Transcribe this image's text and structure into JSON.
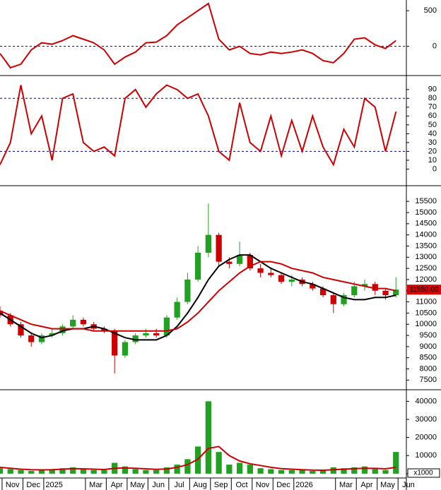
{
  "chart_data": [
    {
      "type": "line",
      "x": [
        0.9,
        1.4,
        1.9,
        2.4,
        2.9,
        3.4,
        3.9,
        4.4,
        4.9,
        5.4,
        5.9,
        6.4,
        6.9,
        7.4,
        7.9,
        8.4,
        8.9,
        9.4,
        9.9,
        10.4,
        10.9,
        11.4,
        11.9,
        12.4,
        12.9,
        13.4,
        13.9,
        14.4,
        14.9,
        15.4,
        15.9,
        16.4,
        16.9,
        17.4,
        17.9,
        18.4,
        18.9,
        19.4,
        19.9
      ],
      "xlim": [
        0.9,
        20.4
      ],
      "ylim": [
        -400,
        650
      ],
      "yticks": [
        0,
        500
      ],
      "hlines": [
        0
      ],
      "series": [
        {
          "color": "#cc0000",
          "values": [
            -100,
            -300,
            -250,
            -50,
            50,
            30,
            80,
            150,
            100,
            50,
            -50,
            -250,
            -150,
            -80,
            50,
            60,
            150,
            300,
            400,
            500,
            600,
            100,
            -50,
            0,
            -100,
            -120,
            -80,
            -100,
            -80,
            -50,
            -100,
            -200,
            -230,
            -100,
            100,
            120,
            20,
            -30,
            80
          ]
        }
      ]
    },
    {
      "type": "line",
      "x": [
        0.9,
        1.4,
        1.9,
        2.4,
        2.9,
        3.4,
        3.9,
        4.4,
        4.9,
        5.4,
        5.9,
        6.4,
        6.9,
        7.4,
        7.9,
        8.4,
        8.9,
        9.4,
        9.9,
        10.4,
        10.9,
        11.4,
        11.9,
        12.4,
        12.9,
        13.4,
        13.9,
        14.4,
        14.9,
        15.4,
        15.9,
        16.4,
        16.9,
        17.4,
        17.9,
        18.4,
        18.9,
        19.4,
        19.9
      ],
      "xlim": [
        0.9,
        20.4
      ],
      "ylim": [
        -18,
        105
      ],
      "yticks": [
        0,
        10,
        20,
        30,
        40,
        50,
        60,
        70,
        80,
        90
      ],
      "hlines": [
        20,
        80
      ],
      "series": [
        {
          "color": "#cc0000",
          "values": [
            5,
            30,
            95,
            40,
            60,
            10,
            80,
            85,
            30,
            20,
            25,
            15,
            80,
            90,
            70,
            85,
            95,
            90,
            80,
            85,
            60,
            20,
            10,
            75,
            30,
            20,
            60,
            15,
            55,
            20,
            60,
            25,
            5,
            45,
            25,
            80,
            70,
            20,
            65
          ]
        }
      ]
    },
    {
      "type": "candlestick",
      "x": [
        0.9,
        1.4,
        1.9,
        2.4,
        2.9,
        3.4,
        3.9,
        4.4,
        4.9,
        5.4,
        5.9,
        6.4,
        6.9,
        7.4,
        7.9,
        8.4,
        8.9,
        9.4,
        9.9,
        10.4,
        10.9,
        11.4,
        11.9,
        12.4,
        12.9,
        13.4,
        13.9,
        14.4,
        14.9,
        15.4,
        15.9,
        16.4,
        16.9,
        17.4,
        17.9,
        18.4,
        18.9,
        19.4,
        19.9
      ],
      "xlim": [
        0.9,
        20.4
      ],
      "ylim": [
        7100,
        16170
      ],
      "yticks": [
        7500,
        8000,
        8500,
        9000,
        9500,
        10000,
        10500,
        11000,
        11500,
        12000,
        12500,
        13000,
        13500,
        14000,
        14500,
        15000,
        15500
      ],
      "open": [
        10600,
        10400,
        10000,
        9500,
        9200,
        9500,
        9600,
        9900,
        10200,
        10000,
        9800,
        9700,
        8600,
        9200,
        9500,
        9600,
        9500,
        10300,
        11000,
        12000,
        13200,
        14000,
        12800,
        12700,
        13100,
        12500,
        12300,
        12200,
        11900,
        12000,
        11800,
        11600,
        11300,
        10900,
        11300,
        11700,
        11800,
        11500,
        11300
      ],
      "high": [
        10800,
        10500,
        10100,
        9600,
        9600,
        9800,
        10000,
        10400,
        10300,
        10100,
        9900,
        9800,
        9300,
        9600,
        9800,
        9800,
        10400,
        11200,
        12300,
        13500,
        15400,
        14100,
        13000,
        13700,
        13200,
        12700,
        12500,
        12300,
        12200,
        12100,
        11900,
        11700,
        11400,
        11400,
        11900,
        12000,
        11900,
        11600,
        12100
      ],
      "low": [
        10300,
        9900,
        9400,
        9000,
        9100,
        9400,
        9500,
        9800,
        9900,
        9700,
        9600,
        7800,
        8500,
        9100,
        9400,
        9400,
        9400,
        10200,
        10900,
        11900,
        13000,
        12600,
        12500,
        12600,
        12400,
        12100,
        12100,
        11800,
        11700,
        11700,
        11500,
        11200,
        10500,
        10800,
        11200,
        11500,
        11300,
        11100,
        11200
      ],
      "close": [
        10400,
        10000,
        9500,
        9200,
        9500,
        9600,
        9900,
        10200,
        10000,
        9800,
        9700,
        8600,
        9200,
        9500,
        9600,
        9500,
        10300,
        11000,
        12000,
        13200,
        14000,
        12800,
        12700,
        13100,
        12500,
        12300,
        12200,
        11900,
        12000,
        11800,
        11600,
        11300,
        10900,
        11300,
        11700,
        11800,
        11500,
        11300,
        11550
      ],
      "last_label": "11550.00",
      "up_color": "#22a022",
      "down_color": "#cc0000",
      "series": [
        {
          "color": "#000000",
          "values": [
            10500,
            10200,
            9900,
            9600,
            9400,
            9500,
            9700,
            9800,
            9800,
            9900,
            9800,
            9600,
            9400,
            9300,
            9300,
            9300,
            9500,
            9900,
            10500,
            11200,
            12000,
            12600,
            12900,
            13100,
            13100,
            12800,
            12500,
            12300,
            12100,
            11900,
            11800,
            11600,
            11400,
            11200,
            11100,
            11100,
            11200,
            11200,
            11300
          ]
        },
        {
          "color": "#cc0000",
          "values": [
            10600,
            10400,
            10200,
            10000,
            9900,
            9800,
            9800,
            9800,
            9800,
            9700,
            9700,
            9700,
            9700,
            9700,
            9700,
            9700,
            9700,
            9800,
            10100,
            10500,
            11000,
            11500,
            11900,
            12300,
            12600,
            12800,
            12800,
            12700,
            12500,
            12400,
            12300,
            12100,
            12000,
            11900,
            11800,
            11700,
            11600,
            11600,
            11500
          ]
        }
      ]
    },
    {
      "type": "bar",
      "x": [
        0.9,
        1.4,
        1.9,
        2.4,
        2.9,
        3.4,
        3.9,
        4.4,
        4.9,
        5.4,
        5.9,
        6.4,
        6.9,
        7.4,
        7.9,
        8.4,
        8.9,
        9.4,
        9.9,
        10.4,
        10.9,
        11.4,
        11.9,
        12.4,
        12.9,
        13.4,
        13.9,
        14.4,
        14.9,
        15.4,
        15.9,
        16.4,
        16.9,
        17.4,
        17.9,
        18.4,
        18.9,
        19.4,
        19.9
      ],
      "xlim": [
        0.9,
        20.4
      ],
      "ylim": [
        -2000,
        46000
      ],
      "yticks": [
        0,
        10000,
        20000,
        30000,
        40000
      ],
      "unit_label": "x1000",
      "color": "#22a022",
      "values": [
        3000,
        2500,
        2000,
        1500,
        2000,
        2500,
        3000,
        3500,
        2500,
        2000,
        2000,
        6000,
        4000,
        2500,
        2000,
        2000,
        3500,
        5000,
        8000,
        15000,
        40000,
        12000,
        5000,
        6000,
        5000,
        3000,
        2500,
        2000,
        2000,
        2000,
        1500,
        2000,
        3500,
        3000,
        3500,
        4000,
        2500,
        2000,
        12000
      ],
      "series": [
        {
          "color": "#cc0000",
          "values": [
            3500,
            3000,
            2500,
            2200,
            2100,
            2200,
            2500,
            2800,
            2700,
            2500,
            2300,
            3000,
            3200,
            3000,
            2700,
            2400,
            2600,
            3500,
            5000,
            8000,
            14000,
            15000,
            10000,
            7000,
            5500,
            4500,
            3500,
            2800,
            2500,
            2200,
            2000,
            1900,
            2200,
            2500,
            2800,
            3000,
            2900,
            2700,
            3500
          ]
        }
      ],
      "xticks": [
        {
          "value": 1,
          "label": "Nov"
        },
        {
          "value": 2,
          "label": "Dec"
        },
        {
          "value": 3,
          "label": "2025"
        },
        {
          "value": 5,
          "label": "Mar"
        },
        {
          "value": 6,
          "label": "Apr"
        },
        {
          "value": 7,
          "label": "May"
        },
        {
          "value": 8,
          "label": "Jun"
        },
        {
          "value": 9,
          "label": "Jul"
        },
        {
          "value": 10,
          "label": "Aug"
        },
        {
          "value": 11,
          "label": "Sep"
        },
        {
          "value": 12,
          "label": "Oct"
        },
        {
          "value": 13,
          "label": "Nov"
        },
        {
          "value": 14,
          "label": "Dec"
        },
        {
          "value": 15,
          "label": "2026"
        },
        {
          "value": 17,
          "label": "Mar"
        },
        {
          "value": 18,
          "label": "Apr"
        },
        {
          "value": 19,
          "label": "May"
        },
        {
          "value": 20,
          "label": "Jun"
        }
      ]
    }
  ]
}
